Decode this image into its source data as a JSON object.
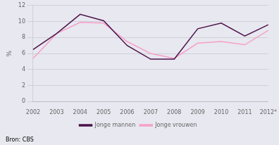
{
  "chart_data": {
    "type": "line",
    "categories": [
      "2002",
      "2003",
      "2004",
      "2005",
      "2006",
      "2007",
      "2008",
      "2009",
      "2010",
      "2011",
      "2012*"
    ],
    "series": [
      {
        "name": "Jonge mannen",
        "color": "#4b1248",
        "values": [
          6.5,
          8.5,
          10.9,
          10.1,
          7.0,
          5.3,
          5.3,
          9.1,
          9.8,
          8.2,
          9.6
        ]
      },
      {
        "name": "Jonge vrouwen",
        "color": "#f5a0c8",
        "values": [
          5.4,
          8.5,
          9.9,
          9.8,
          7.5,
          6.0,
          5.4,
          7.3,
          7.5,
          7.1,
          8.9
        ]
      }
    ],
    "ylabel": "%",
    "annotations": [
      "Bron: CBS"
    ],
    "ylim": [
      0,
      12
    ],
    "yticks": [
      0,
      2,
      4,
      6,
      8,
      10,
      12
    ],
    "grid": true,
    "legend": "bottom"
  }
}
